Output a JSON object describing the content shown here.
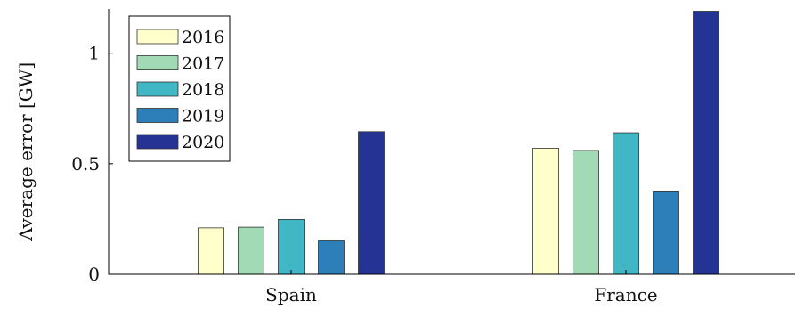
{
  "chart_data": {
    "type": "bar",
    "title": "",
    "xlabel": "",
    "ylabel": "Average error [GW]",
    "ylim": [
      0,
      1.2
    ],
    "yticks": [
      0,
      0.5,
      1
    ],
    "ytick_labels": [
      "0",
      "0.5",
      "1"
    ],
    "categories": [
      "Spain",
      "France"
    ],
    "series": [
      {
        "name": "2016",
        "color": "#ffffcc",
        "values": [
          0.21,
          0.57
        ]
      },
      {
        "name": "2017",
        "color": "#a1dab4",
        "values": [
          0.213,
          0.56
        ]
      },
      {
        "name": "2018",
        "color": "#41b6c4",
        "values": [
          0.248,
          0.64
        ]
      },
      {
        "name": "2019",
        "color": "#2c7fb8",
        "values": [
          0.155,
          0.377
        ]
      },
      {
        "name": "2020",
        "color": "#253494",
        "values": [
          0.645,
          1.19
        ]
      }
    ],
    "legend_position": "top-left",
    "grid": false
  }
}
